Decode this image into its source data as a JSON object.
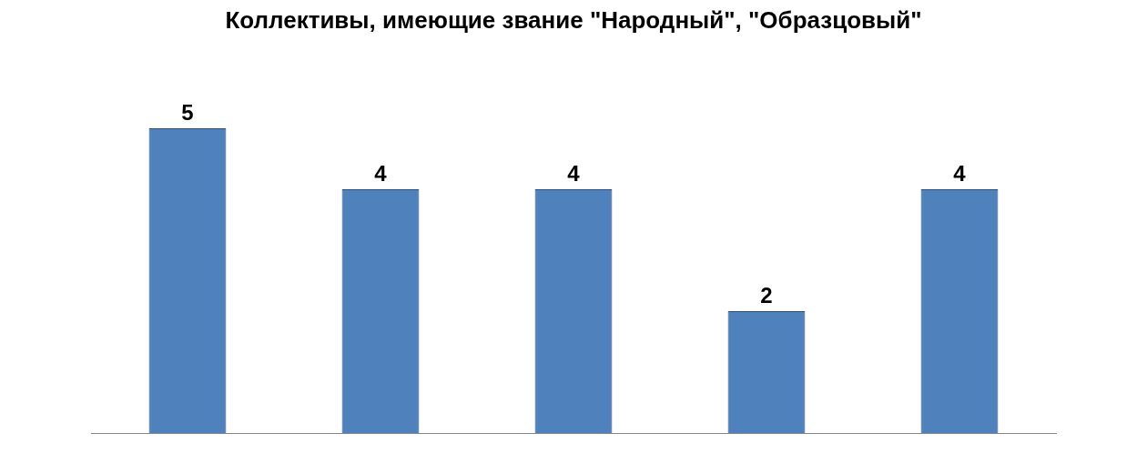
{
  "chart_data": {
    "type": "bar",
    "title": "Коллективы, имеющие звание \"Народный\", \"Образцовый\"",
    "categories": [
      null,
      null,
      null,
      null,
      null
    ],
    "values": [
      5,
      4,
      4,
      2,
      4
    ],
    "color": "#4f81bd",
    "data_labels": true
  }
}
